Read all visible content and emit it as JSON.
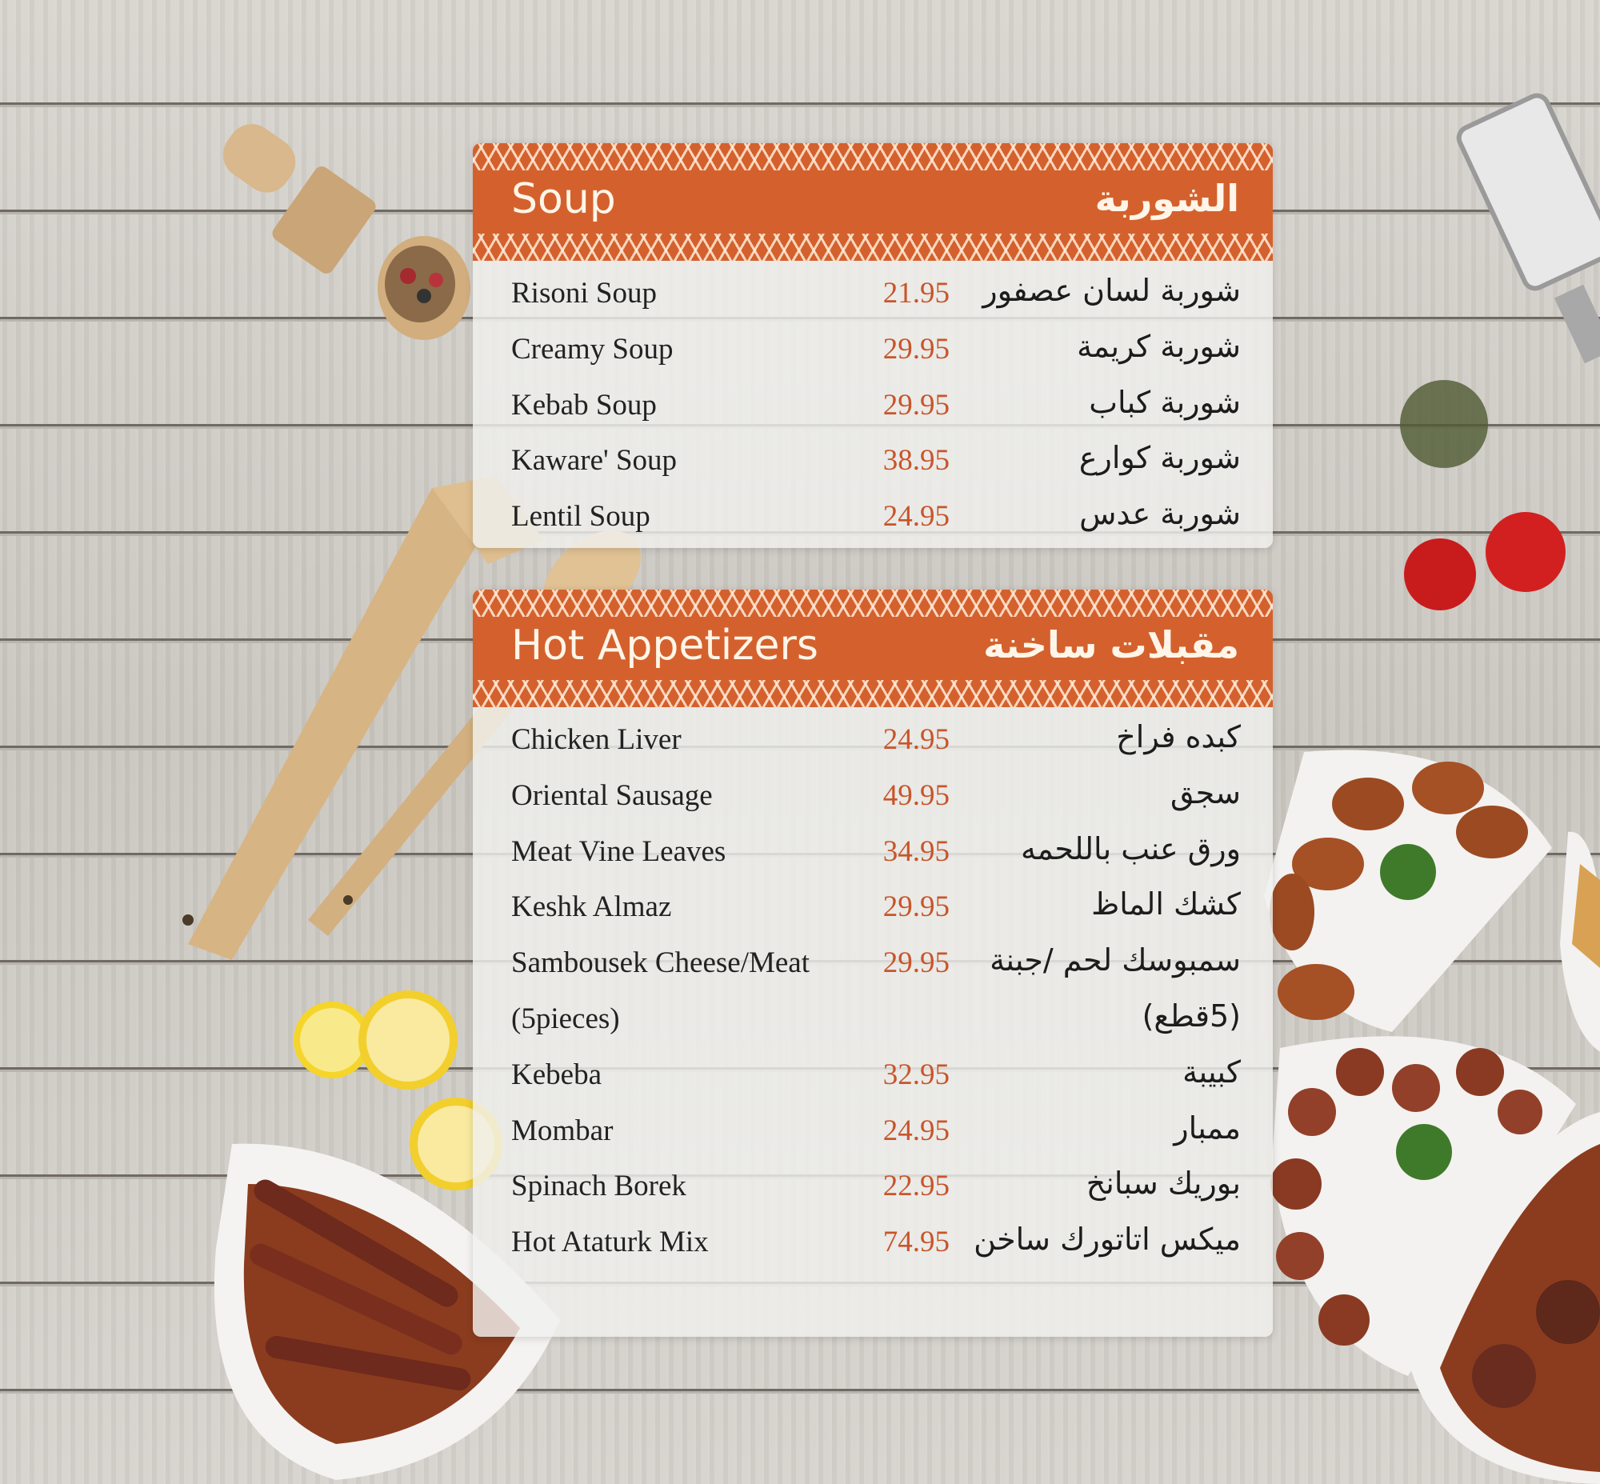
{
  "colors": {
    "accent": "#d4612d",
    "price": "#c8552a"
  },
  "sections": [
    {
      "title_en": "Soup",
      "title_ar": "الشوربة",
      "items": [
        {
          "name": "Risoni Soup",
          "price": "21.95",
          "name_ar": "شوربة لسان عصفور"
        },
        {
          "name": "Creamy Soup",
          "price": "29.95",
          "name_ar": "شوربة كريمة"
        },
        {
          "name": "Kebab Soup",
          "price": "29.95",
          "name_ar": "شوربة كباب"
        },
        {
          "name": "Kaware' Soup",
          "price": "38.95",
          "name_ar": "شوربة كوارع"
        },
        {
          "name": "Lentil Soup",
          "price": "24.95",
          "name_ar": "شوربة عدس"
        }
      ]
    },
    {
      "title_en": "Hot Appetizers",
      "title_ar": "مقبلات ساخنة",
      "items": [
        {
          "name": "Chicken Liver",
          "price": "24.95",
          "name_ar": "كبده فراخ"
        },
        {
          "name": "Oriental Sausage",
          "price": "49.95",
          "name_ar": "سجق"
        },
        {
          "name": "Meat Vine Leaves",
          "price": "34.95",
          "name_ar": "ورق عنب باللحمه"
        },
        {
          "name": "Keshk Almaz",
          "price": "29.95",
          "name_ar": "كشك الماظ"
        },
        {
          "name": "Sambousek Cheese/Meat",
          "price": "29.95",
          "name_ar": "سمبوسك لحم /جبنة"
        },
        {
          "name": "(5pieces)",
          "price": "",
          "name_ar": "(5قطع)"
        },
        {
          "name": "Kebeba",
          "price": "32.95",
          "name_ar": "كبيبة"
        },
        {
          "name": "Mombar",
          "price": "24.95",
          "name_ar": "ممبار"
        },
        {
          "name": "Spinach Borek",
          "price": "22.95",
          "name_ar": "بوريك سبانخ"
        },
        {
          "name": "Hot Ataturk Mix",
          "price": "74.95",
          "name_ar": "ميكس اتاتورك ساخن"
        }
      ]
    }
  ]
}
